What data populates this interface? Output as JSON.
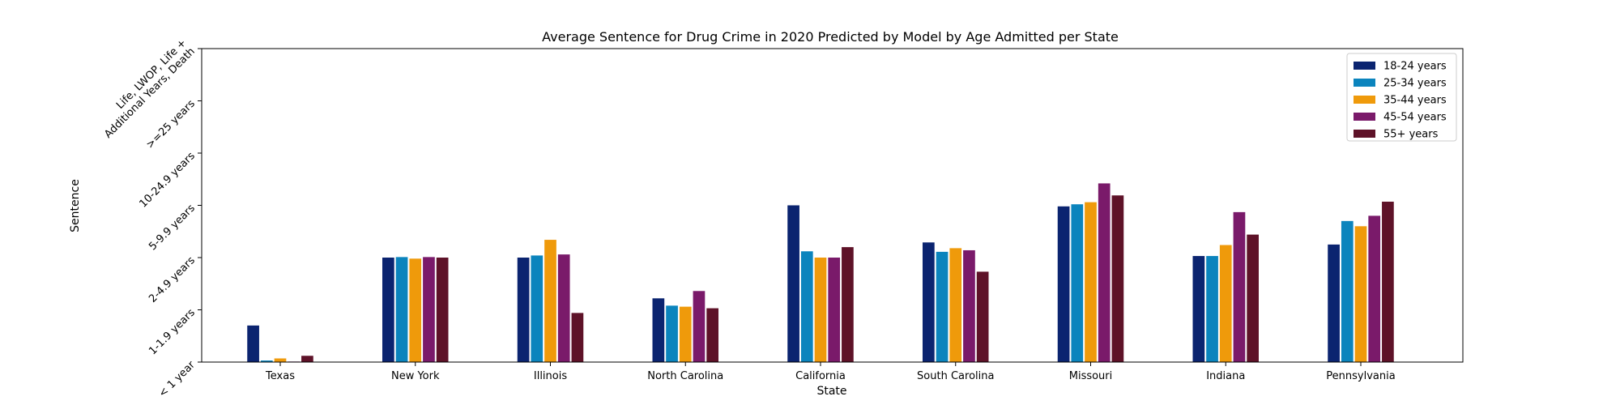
{
  "chart_data": {
    "type": "bar",
    "title": "Average Sentence for Drug Crime in 2020 Predicted by Model by Age Admitted per State",
    "xlabel": "State",
    "ylabel": "Sentence",
    "ylim": [
      0,
      6
    ],
    "y_tick_values": [
      0,
      1,
      2,
      3,
      4,
      5,
      6
    ],
    "y_tick_labels": [
      [
        "< 1 year"
      ],
      [
        "1-1.9 years"
      ],
      [
        "2-4.9 years"
      ],
      [
        "5-9.9 years"
      ],
      [
        "10-24.9 years"
      ],
      [
        ">=25 years"
      ],
      [
        "Life, LWOP, Life +",
        "Additional Years, Death"
      ]
    ],
    "categories": [
      "Texas",
      "New York",
      "Illinois",
      "North Carolina",
      "California",
      "South Carolina",
      "Missouri",
      "Indiana",
      "Pennsylvania"
    ],
    "series": [
      {
        "name": "18-24 years",
        "color": "#0b2470",
        "values": [
          0.7,
          2.0,
          2.0,
          1.22,
          3.0,
          2.29,
          2.98,
          2.03,
          2.25
        ]
      },
      {
        "name": "25-34 years",
        "color": "#0b84bd",
        "values": [
          0.03,
          2.01,
          2.04,
          1.08,
          2.12,
          2.11,
          3.02,
          2.03,
          2.7
        ]
      },
      {
        "name": "35-44 years",
        "color": "#ef9a0b",
        "values": [
          0.07,
          1.98,
          2.34,
          1.06,
          2.0,
          2.18,
          3.06,
          2.24,
          2.6
        ]
      },
      {
        "name": "45-54 years",
        "color": "#7a1a6a",
        "values": [
          0.01,
          2.01,
          2.06,
          1.36,
          2.0,
          2.14,
          3.42,
          2.87,
          2.8
        ]
      },
      {
        "name": "55+ years",
        "color": "#5e1228",
        "values": [
          0.12,
          2.0,
          0.94,
          1.03,
          2.2,
          1.73,
          3.19,
          2.44,
          3.07
        ]
      }
    ],
    "grid": false,
    "legend_position": "top-right"
  }
}
